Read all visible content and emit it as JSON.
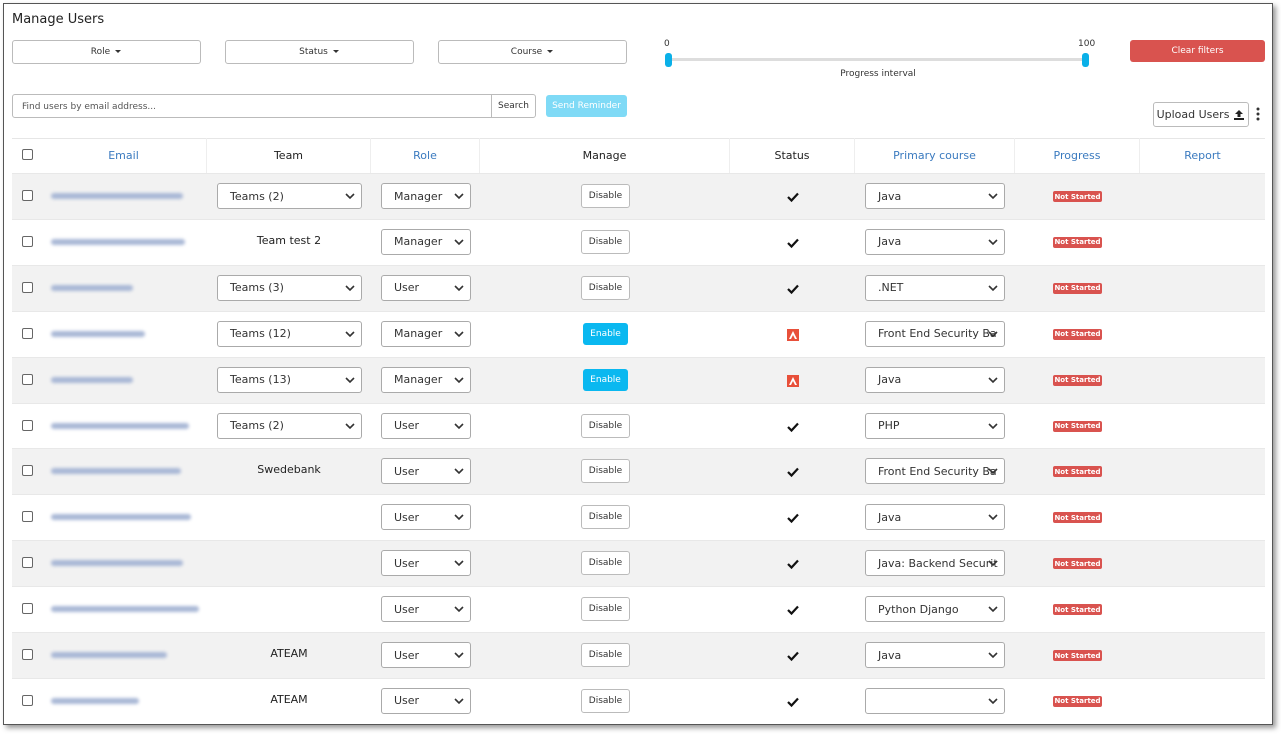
{
  "header": {
    "title": "Manage Users"
  },
  "filters": {
    "role": "Role",
    "status": "Status",
    "course": "Course",
    "slider_min": 0,
    "slider_max": 100,
    "slider_label": "Progress interval",
    "clear": "Clear filters"
  },
  "search": {
    "placeholder": "Find users by email address...",
    "button": "Search",
    "send_reminder": "Send Reminder",
    "upload": "Upload Users"
  },
  "table": {
    "columns": [
      "Email",
      "Team",
      "Role",
      "Manage",
      "Status",
      "Primary course",
      "Progress",
      "Report"
    ],
    "rows": [
      {
        "team": "Teams (2)",
        "team_dropdown": true,
        "role": "Manager",
        "manage": "Disable",
        "active": true,
        "course": "Java",
        "progress": "Not Started"
      },
      {
        "team": "Team test 2",
        "team_dropdown": false,
        "role": "Manager",
        "manage": "Disable",
        "active": true,
        "course": "Java",
        "progress": "Not Started"
      },
      {
        "team": "Teams (3)",
        "team_dropdown": true,
        "role": "User",
        "manage": "Disable",
        "active": true,
        "course": ".NET",
        "progress": "Not Started"
      },
      {
        "team": "Teams (12)",
        "team_dropdown": true,
        "role": "Manager",
        "manage": "Enable",
        "active": false,
        "course": "Front End Security Ba",
        "progress": "Not Started"
      },
      {
        "team": "Teams (13)",
        "team_dropdown": true,
        "role": "Manager",
        "manage": "Enable",
        "active": false,
        "course": "Java",
        "progress": "Not Started"
      },
      {
        "team": "Teams (2)",
        "team_dropdown": true,
        "role": "User",
        "manage": "Disable",
        "active": true,
        "course": "PHP",
        "progress": "Not Started"
      },
      {
        "team": "Swedebank",
        "team_dropdown": false,
        "role": "User",
        "manage": "Disable",
        "active": true,
        "course": "Front End Security Ba",
        "progress": "Not Started"
      },
      {
        "team": null,
        "team_dropdown": false,
        "role": "User",
        "manage": "Disable",
        "active": true,
        "course": "Java",
        "progress": "Not Started"
      },
      {
        "team": null,
        "team_dropdown": false,
        "role": "User",
        "manage": "Disable",
        "active": true,
        "course": "Java: Backend Securit",
        "progress": "Not Started"
      },
      {
        "team": null,
        "team_dropdown": false,
        "role": "User",
        "manage": "Disable",
        "active": true,
        "course": "Python Django",
        "progress": "Not Started"
      },
      {
        "team": "ATEAM",
        "team_dropdown": false,
        "role": "User",
        "manage": "Disable",
        "active": true,
        "course": "Java",
        "progress": "Not Started"
      },
      {
        "team": "ATEAM",
        "team_dropdown": false,
        "role": "User",
        "manage": "Disable",
        "active": true,
        "course": null,
        "progress": "Not Started"
      }
    ]
  }
}
